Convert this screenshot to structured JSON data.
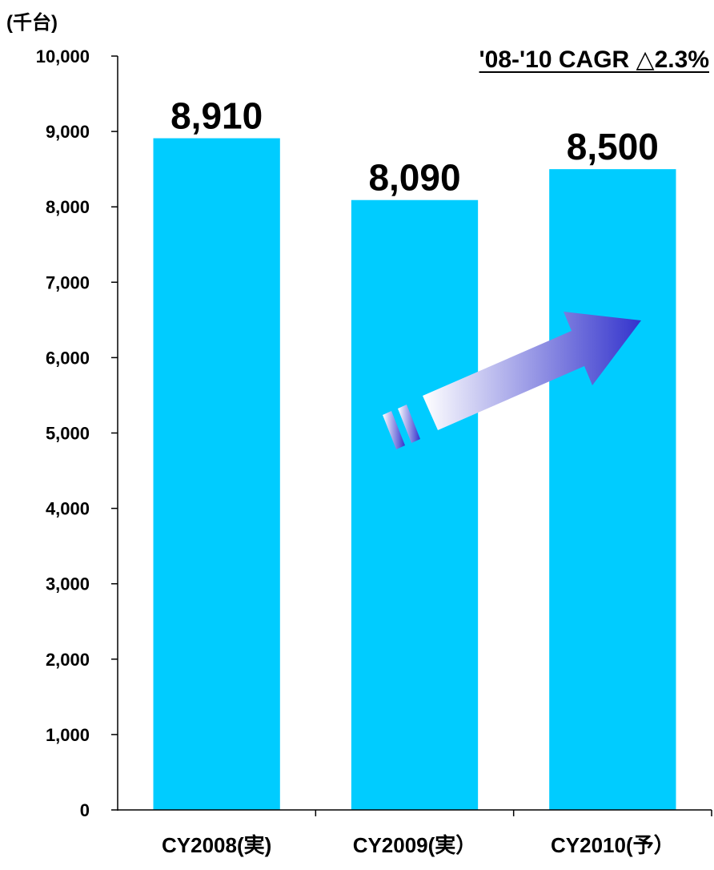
{
  "chart_data": {
    "type": "bar",
    "unit_label": "(千台)",
    "categories": [
      "CY2008(実)",
      "CY2009(実）",
      "CY2010(予）"
    ],
    "values": [
      8910,
      8090,
      8500
    ],
    "data_labels": [
      "8,910",
      "8,090",
      "8,500"
    ],
    "ylim": [
      0,
      10000
    ],
    "yticks": [
      0,
      1000,
      2000,
      3000,
      4000,
      5000,
      6000,
      7000,
      8000,
      9000,
      10000
    ],
    "ytick_labels": [
      "0",
      "1,000",
      "2,000",
      "3,000",
      "4,000",
      "5,000",
      "6,000",
      "7,000",
      "8,000",
      "9,000",
      "10,000"
    ],
    "annotation": "'08-'10 CAGR △2.3%",
    "grid": false,
    "bar_color": "#00CCFF",
    "arrow_color_end": "#3333CC"
  }
}
